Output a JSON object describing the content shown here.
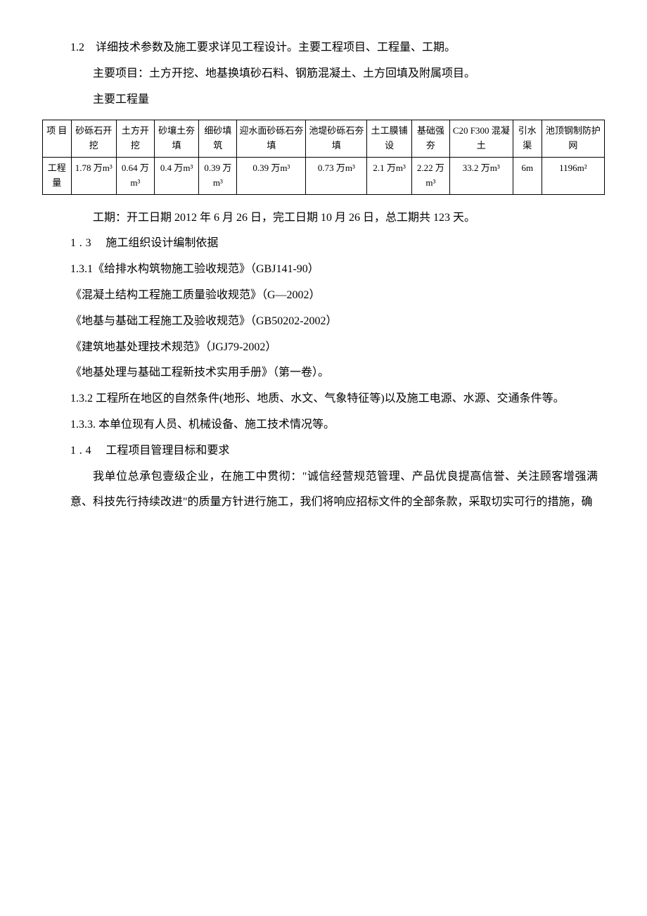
{
  "section_1_2": {
    "title_num": "1.2",
    "title_text": "详细技术参数及施工要求详见工程设计。主要工程项目、工程量、工期。",
    "main_items": "主要项目：土方开挖、地基换填砂石料、钢筋混凝土、土方回填及附属项目。",
    "main_quantities_label": "主要工程量"
  },
  "table": {
    "header_label": "项 目",
    "row_label": "工程量",
    "columns": [
      "砂砾石开挖",
      "土方开挖",
      "砂壤土夯填",
      "细砂填筑",
      "迎水面砂砾石夯填",
      "池堤砂砾石夯填",
      "土工膜铺设",
      "基础强夯",
      "C20 F300 混凝土",
      "引水渠",
      "池顶钢制防护网"
    ],
    "values": [
      "1.78 万m³",
      "0.64 万m³",
      "0.4 万m³",
      "0.39 万m³",
      "0.39 万m³",
      "0.73 万m³",
      "2.1 万m³",
      "2.22 万m³",
      "33.2 万m³",
      "6m",
      "1196m²"
    ]
  },
  "duration": "工期：开工日期 2012 年 6 月 26 日，完工日期 10 月 26 日，总工期共 123 天。",
  "section_1_3": {
    "num": "1.3",
    "title": "施工组织设计编制依据",
    "item_1_3_1": "1.3.1《给排水构筑物施工验收规范》（GBJ141-90）",
    "refs": [
      "《混凝土结构工程施工质量验收规范》（G—2002）",
      "《地基与基础工程施工及验收规范》（GB50202-2002）",
      "《建筑地基处理技术规范》（JGJ79-2002）",
      "《地基处理与基础工程新技术实用手册》（第一卷）。"
    ],
    "item_1_3_2": "1.3.2 工程所在地区的自然条件(地形、地质、水文、气象特征等)以及施工电源、水源、交通条件等。",
    "item_1_3_3": "1.3.3. 本单位现有人员、机械设备、施工技术情况等。"
  },
  "section_1_4": {
    "num": "1.4",
    "title": "工程项目管理目标和要求",
    "body": "我单位总承包壹级企业，在施工中贯彻：\"诚信经营规范管理、产品优良提高信誉、关注顾客增强满意、科技先行持续改进\"的质量方针进行施工，我们将响应招标文件的全部条款，采取切实可行的措施，确"
  }
}
